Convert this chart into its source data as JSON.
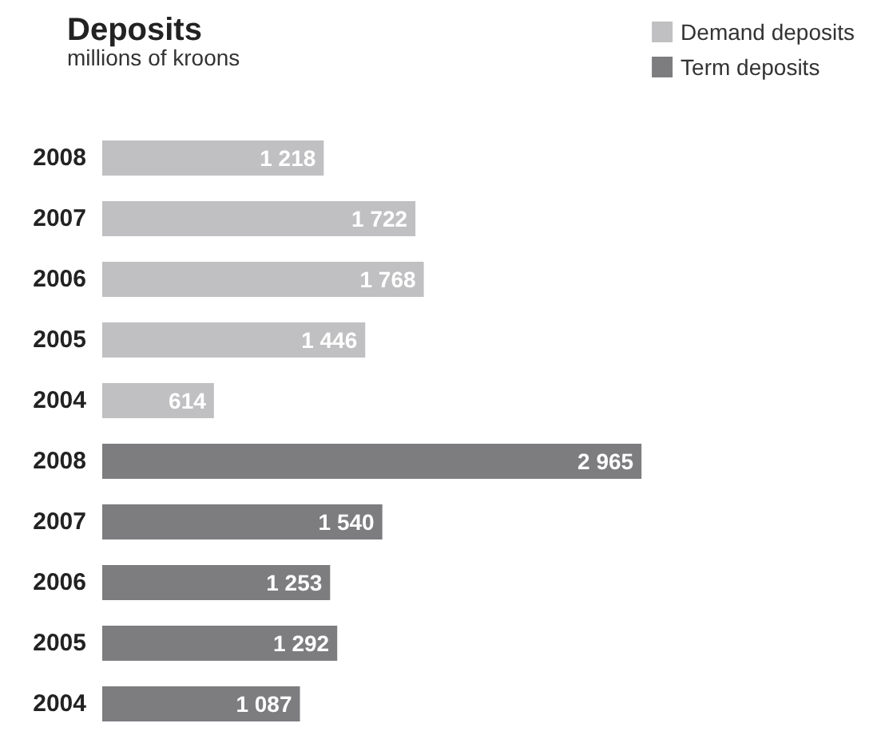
{
  "chart_data": {
    "type": "bar",
    "orientation": "horizontal",
    "title": "Deposits",
    "subtitle": "millions of kroons",
    "categories": [
      "2008",
      "2007",
      "2006",
      "2005",
      "2004",
      "2008",
      "2007",
      "2006",
      "2005",
      "2004"
    ],
    "series": [
      {
        "name": "Demand deposits",
        "color": "#c0c0c2",
        "values": [
          1218,
          1722,
          1768,
          1446,
          614,
          null,
          null,
          null,
          null,
          null
        ],
        "value_labels": [
          "1 218",
          "1 722",
          "1 768",
          "1 446",
          "614",
          null,
          null,
          null,
          null,
          null
        ]
      },
      {
        "name": "Term deposits",
        "color": "#7d7d80",
        "values": [
          null,
          null,
          null,
          null,
          null,
          2965,
          1540,
          1253,
          1292,
          1087
        ],
        "value_labels": [
          null,
          null,
          null,
          null,
          null,
          "2 965",
          "1 540",
          "1 253",
          "1 292",
          "1 087"
        ]
      }
    ],
    "legend": "top right"
  }
}
